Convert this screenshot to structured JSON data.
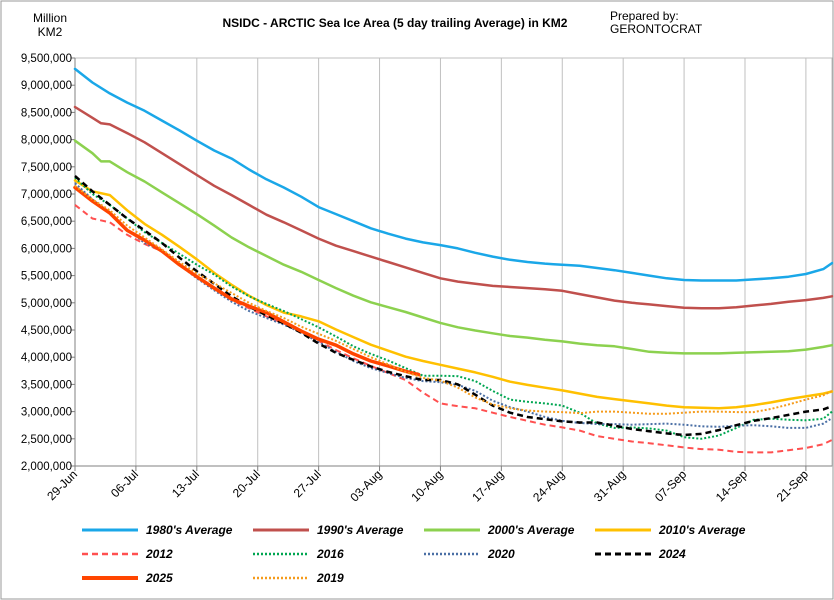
{
  "chart_data": {
    "type": "line",
    "title": "NSIDC - ARCTIC Sea Ice Area (5 day trailing Average) in KM2",
    "ylabel": "Million KM2",
    "ylabel_lines": [
      "Million",
      "KM2"
    ],
    "credit_lines": [
      "Prepared by:",
      "GERONTOCRAT"
    ],
    "ylim": [
      2000000,
      9500000
    ],
    "yticks": [
      2000000,
      2500000,
      3000000,
      3500000,
      4000000,
      4500000,
      5000000,
      5500000,
      6000000,
      6500000,
      7000000,
      7500000,
      8000000,
      8500000,
      9000000,
      9500000
    ],
    "ytick_labels": [
      "2,000,000",
      "2,500,000",
      "3,000,000",
      "3,500,000",
      "4,000,000",
      "4,500,000",
      "5,000,000",
      "5,500,000",
      "6,000,000",
      "6,500,000",
      "7,000,000",
      "7,500,000",
      "8,000,000",
      "8,500,000",
      "9,000,000",
      "9,500,000"
    ],
    "x_day_range": [
      0,
      87
    ],
    "xtick_days": [
      0,
      7,
      14,
      21,
      28,
      35,
      42,
      49,
      56,
      63,
      70,
      77,
      84
    ],
    "xtick_labels": [
      "29-Jun",
      "06-Jul",
      "13-Jul",
      "20-Jul",
      "27-Jul",
      "03-Aug",
      "10-Aug",
      "17-Aug",
      "24-Aug",
      "31-Aug",
      "07-Sep",
      "14-Sep",
      "21-Sep"
    ],
    "grid": "vertical",
    "legend_position": "bottom",
    "series": [
      {
        "name": "1980's Average",
        "color": "#1aa7e8",
        "style": "solid",
        "width": 2.5,
        "x": [
          0,
          2,
          4,
          6,
          8,
          10,
          12,
          14,
          16,
          18,
          20,
          22,
          24,
          26,
          28,
          30,
          32,
          34,
          36,
          38,
          40,
          42,
          44,
          46,
          48,
          50,
          52,
          54,
          55,
          56,
          58,
          60,
          62,
          64,
          66,
          68,
          70,
          72,
          74,
          76,
          78,
          80,
          82,
          84,
          86,
          87
        ],
        "y": [
          9300000,
          9050000,
          8850000,
          8680000,
          8530000,
          8350000,
          8170000,
          7980000,
          7800000,
          7650000,
          7450000,
          7270000,
          7120000,
          6950000,
          6760000,
          6630000,
          6500000,
          6370000,
          6270000,
          6180000,
          6110000,
          6060000,
          6000000,
          5920000,
          5850000,
          5790000,
          5750000,
          5720000,
          5710000,
          5700000,
          5680000,
          5640000,
          5600000,
          5550000,
          5500000,
          5450000,
          5420000,
          5410000,
          5410000,
          5410000,
          5430000,
          5450000,
          5480000,
          5530000,
          5620000,
          5730000
        ]
      },
      {
        "name": "1990's Average",
        "color": "#c0504d",
        "style": "solid",
        "width": 2.5,
        "x": [
          0,
          2,
          3,
          4,
          6,
          8,
          10,
          12,
          14,
          16,
          18,
          20,
          22,
          24,
          26,
          28,
          30,
          32,
          34,
          36,
          38,
          40,
          42,
          44,
          46,
          48,
          50,
          52,
          54,
          56,
          58,
          60,
          62,
          64,
          66,
          68,
          70,
          72,
          74,
          76,
          78,
          80,
          82,
          84,
          86,
          87
        ],
        "y": [
          8600000,
          8400000,
          8300000,
          8280000,
          8120000,
          7950000,
          7750000,
          7550000,
          7350000,
          7150000,
          6980000,
          6800000,
          6620000,
          6480000,
          6330000,
          6180000,
          6050000,
          5950000,
          5850000,
          5750000,
          5650000,
          5550000,
          5450000,
          5390000,
          5350000,
          5310000,
          5290000,
          5270000,
          5250000,
          5220000,
          5160000,
          5100000,
          5040000,
          5000000,
          4970000,
          4940000,
          4910000,
          4900000,
          4900000,
          4920000,
          4950000,
          4980000,
          5020000,
          5050000,
          5090000,
          5120000
        ]
      },
      {
        "name": "2000's Average",
        "color": "#8cd14f",
        "style": "solid",
        "width": 2.5,
        "x": [
          0,
          2,
          3,
          4,
          6,
          8,
          10,
          12,
          14,
          16,
          18,
          20,
          22,
          24,
          26,
          28,
          30,
          32,
          34,
          36,
          38,
          40,
          42,
          44,
          46,
          48,
          50,
          52,
          54,
          56,
          58,
          60,
          62,
          64,
          66,
          68,
          70,
          72,
          74,
          76,
          78,
          80,
          82,
          84,
          86,
          87
        ],
        "y": [
          7980000,
          7750000,
          7600000,
          7600000,
          7400000,
          7230000,
          7030000,
          6830000,
          6630000,
          6420000,
          6200000,
          6020000,
          5860000,
          5700000,
          5570000,
          5420000,
          5270000,
          5130000,
          5010000,
          4920000,
          4830000,
          4730000,
          4630000,
          4550000,
          4490000,
          4440000,
          4390000,
          4360000,
          4320000,
          4290000,
          4250000,
          4220000,
          4200000,
          4150000,
          4100000,
          4080000,
          4070000,
          4070000,
          4070000,
          4080000,
          4090000,
          4100000,
          4110000,
          4140000,
          4190000,
          4220000
        ]
      },
      {
        "name": "2010's Average",
        "color": "#ffc000",
        "style": "solid",
        "width": 2.5,
        "x": [
          0,
          2,
          4,
          6,
          8,
          10,
          12,
          14,
          16,
          18,
          20,
          22,
          24,
          26,
          28,
          30,
          32,
          34,
          36,
          38,
          40,
          42,
          44,
          46,
          48,
          50,
          52,
          54,
          56,
          58,
          60,
          62,
          64,
          66,
          68,
          70,
          72,
          74,
          76,
          78,
          80,
          82,
          84,
          86,
          87
        ],
        "y": [
          7250000,
          7050000,
          6980000,
          6700000,
          6450000,
          6250000,
          6030000,
          5800000,
          5550000,
          5330000,
          5130000,
          4960000,
          4820000,
          4750000,
          4660000,
          4510000,
          4370000,
          4230000,
          4120000,
          4010000,
          3930000,
          3860000,
          3790000,
          3720000,
          3640000,
          3550000,
          3490000,
          3440000,
          3390000,
          3330000,
          3270000,
          3230000,
          3190000,
          3150000,
          3110000,
          3080000,
          3070000,
          3060000,
          3080000,
          3120000,
          3170000,
          3230000,
          3280000,
          3330000,
          3370000
        ]
      },
      {
        "name": "2012",
        "color": "#ff5050",
        "style": "dash",
        "width": 2,
        "x": [
          0,
          2,
          4,
          6,
          8,
          10,
          12,
          14,
          16,
          18,
          20,
          22,
          24,
          26,
          28,
          30,
          32,
          34,
          36,
          38,
          40,
          42,
          44,
          46,
          48,
          50,
          52,
          54,
          56,
          58,
          60,
          62,
          64,
          66,
          68,
          70,
          72,
          74,
          76,
          78,
          80,
          82,
          84,
          86,
          87
        ],
        "y": [
          6800000,
          6550000,
          6480000,
          6250000,
          6080000,
          5950000,
          5700000,
          5480000,
          5250000,
          5050000,
          4900000,
          4750000,
          4620000,
          4470000,
          4300000,
          4130000,
          3980000,
          3840000,
          3710000,
          3580000,
          3350000,
          3150000,
          3100000,
          3060000,
          2980000,
          2900000,
          2830000,
          2760000,
          2710000,
          2650000,
          2550000,
          2500000,
          2450000,
          2420000,
          2380000,
          2340000,
          2310000,
          2300000,
          2260000,
          2250000,
          2250000,
          2290000,
          2330000,
          2400000,
          2480000
        ]
      },
      {
        "name": "2016",
        "color": "#00a651",
        "style": "dot",
        "width": 2,
        "x": [
          0,
          2,
          4,
          6,
          8,
          10,
          12,
          14,
          16,
          18,
          20,
          22,
          24,
          26,
          28,
          30,
          32,
          34,
          36,
          38,
          40,
          42,
          44,
          46,
          48,
          50,
          52,
          54,
          56,
          58,
          60,
          62,
          64,
          66,
          68,
          70,
          72,
          74,
          76,
          78,
          80,
          82,
          84,
          86,
          87
        ],
        "y": [
          7300000,
          7000000,
          6800000,
          6550000,
          6300000,
          6100000,
          5900000,
          5700000,
          5520000,
          5300000,
          5120000,
          4980000,
          4850000,
          4700000,
          4550000,
          4380000,
          4200000,
          4060000,
          3940000,
          3800000,
          3660000,
          3660000,
          3650000,
          3560000,
          3380000,
          3220000,
          3180000,
          3150000,
          3110000,
          2980000,
          2780000,
          2700000,
          2710000,
          2690000,
          2650000,
          2530000,
          2500000,
          2560000,
          2700000,
          2850000,
          2870000,
          2850000,
          2840000,
          2870000,
          3000000
        ]
      },
      {
        "name": "2020",
        "color": "#4a6fa5",
        "style": "dot",
        "width": 2,
        "x": [
          0,
          2,
          4,
          6,
          8,
          10,
          12,
          14,
          16,
          18,
          20,
          22,
          24,
          26,
          28,
          30,
          32,
          34,
          36,
          38,
          40,
          42,
          44,
          46,
          48,
          50,
          52,
          54,
          56,
          58,
          60,
          62,
          64,
          66,
          68,
          70,
          72,
          74,
          76,
          78,
          80,
          82,
          84,
          86,
          87
        ],
        "y": [
          7200000,
          6900000,
          6650000,
          6350000,
          6100000,
          5950000,
          5700000,
          5450000,
          5230000,
          5020000,
          4850000,
          4720000,
          4600000,
          4450000,
          4280000,
          4100000,
          3930000,
          3800000,
          3710000,
          3620000,
          3560000,
          3540000,
          3490000,
          3380000,
          3200000,
          3080000,
          3000000,
          2900000,
          2830000,
          2790000,
          2770000,
          2770000,
          2760000,
          2770000,
          2780000,
          2760000,
          2730000,
          2720000,
          2740000,
          2750000,
          2730000,
          2700000,
          2700000,
          2780000,
          2880000
        ]
      },
      {
        "name": "2024",
        "color": "#000000",
        "style": "dash",
        "width": 2.5,
        "x": [
          0,
          2,
          4,
          6,
          8,
          10,
          12,
          14,
          16,
          18,
          20,
          22,
          24,
          26,
          28,
          30,
          32,
          34,
          36,
          38,
          40,
          42,
          44,
          46,
          48,
          50,
          52,
          54,
          56,
          58,
          60,
          62,
          64,
          66,
          68,
          70,
          72,
          74,
          76,
          78,
          80,
          82,
          84,
          86,
          87
        ],
        "y": [
          7330000,
          7050000,
          6800000,
          6550000,
          6330000,
          6100000,
          5830000,
          5580000,
          5350000,
          5120000,
          4930000,
          4770000,
          4620000,
          4450000,
          4250000,
          4080000,
          3950000,
          3830000,
          3730000,
          3650000,
          3580000,
          3580000,
          3500000,
          3310000,
          3110000,
          2980000,
          2900000,
          2860000,
          2820000,
          2800000,
          2800000,
          2740000,
          2680000,
          2640000,
          2600000,
          2570000,
          2590000,
          2660000,
          2750000,
          2830000,
          2880000,
          2940000,
          3000000,
          3040000,
          3100000
        ]
      },
      {
        "name": "2025",
        "color": "#ff4500",
        "style": "solid",
        "width": 3.5,
        "x": [
          0,
          2,
          4,
          6,
          8,
          10,
          12,
          14,
          16,
          18,
          20,
          22,
          24,
          26,
          28,
          30,
          32,
          34,
          36,
          38,
          39.5
        ],
        "y": [
          7120000,
          6870000,
          6650000,
          6330000,
          6150000,
          5950000,
          5700000,
          5480000,
          5270000,
          5070000,
          4940000,
          4820000,
          4650000,
          4480000,
          4330000,
          4220000,
          4060000,
          3930000,
          3840000,
          3740000,
          3680000
        ]
      },
      {
        "name": "2019",
        "color": "#f59b1b",
        "style": "dot",
        "width": 2,
        "x": [
          0,
          2,
          4,
          6,
          8,
          10,
          12,
          14,
          16,
          18,
          20,
          22,
          24,
          26,
          28,
          30,
          32,
          34,
          36,
          38,
          40,
          42,
          44,
          46,
          48,
          50,
          52,
          54,
          56,
          58,
          60,
          62,
          64,
          66,
          68,
          70,
          72,
          74,
          76,
          78,
          80,
          82,
          84,
          86,
          87
        ],
        "y": [
          7150000,
          6900000,
          6700000,
          6420000,
          6200000,
          5980000,
          5750000,
          5540000,
          5360000,
          5180000,
          5000000,
          4850000,
          4720000,
          4560000,
          4430000,
          4300000,
          4150000,
          4000000,
          3870000,
          3730000,
          3620000,
          3570000,
          3440000,
          3260000,
          3130000,
          3060000,
          3020000,
          3000000,
          2990000,
          2970000,
          3000000,
          3000000,
          2980000,
          2960000,
          2960000,
          2980000,
          3000000,
          3000000,
          2990000,
          2990000,
          3050000,
          3130000,
          3220000,
          3300000,
          3380000
        ]
      }
    ]
  }
}
